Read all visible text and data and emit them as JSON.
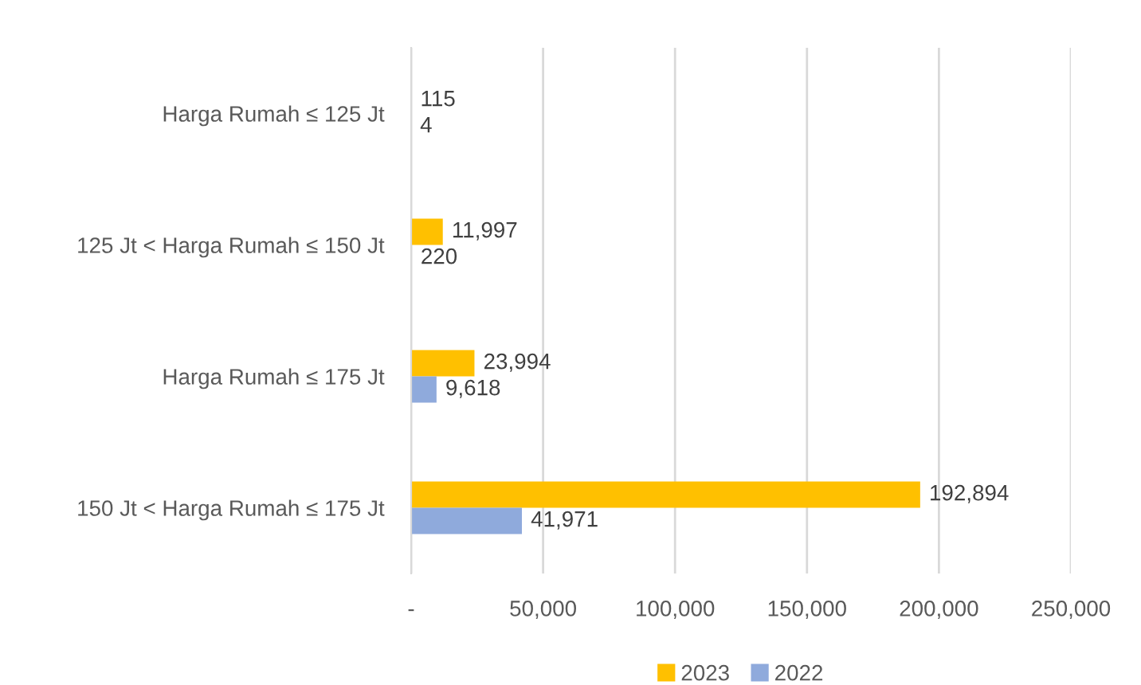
{
  "chart_data": {
    "type": "bar",
    "orientation": "horizontal",
    "categories": [
      "Harga Rumah ≤ 125 Jt",
      "125 Jt < Harga Rumah ≤ 150 Jt",
      "Harga Rumah ≤ 175 Jt",
      "150 Jt < Harga Rumah ≤ 175 Jt"
    ],
    "series": [
      {
        "name": "2023",
        "color": "#ffc000",
        "values": [
          115,
          11997,
          23994,
          192894
        ],
        "value_labels": [
          "115",
          "11,997",
          "23,994",
          "192,894"
        ]
      },
      {
        "name": "2022",
        "color": "#8faadc",
        "values": [
          4,
          220,
          9618,
          41971
        ],
        "value_labels": [
          "4",
          "220",
          "9,618",
          "41,971"
        ]
      }
    ],
    "xlim": [
      0,
      250000
    ],
    "xticks": [
      {
        "value": 0,
        "label": "-"
      },
      {
        "value": 50000,
        "label": "50,000"
      },
      {
        "value": 100000,
        "label": "100,000"
      },
      {
        "value": 150000,
        "label": "150,000"
      },
      {
        "value": 200000,
        "label": "200,000"
      },
      {
        "value": 250000,
        "label": "250,000"
      }
    ],
    "grid": "x",
    "legend": "bottom"
  }
}
